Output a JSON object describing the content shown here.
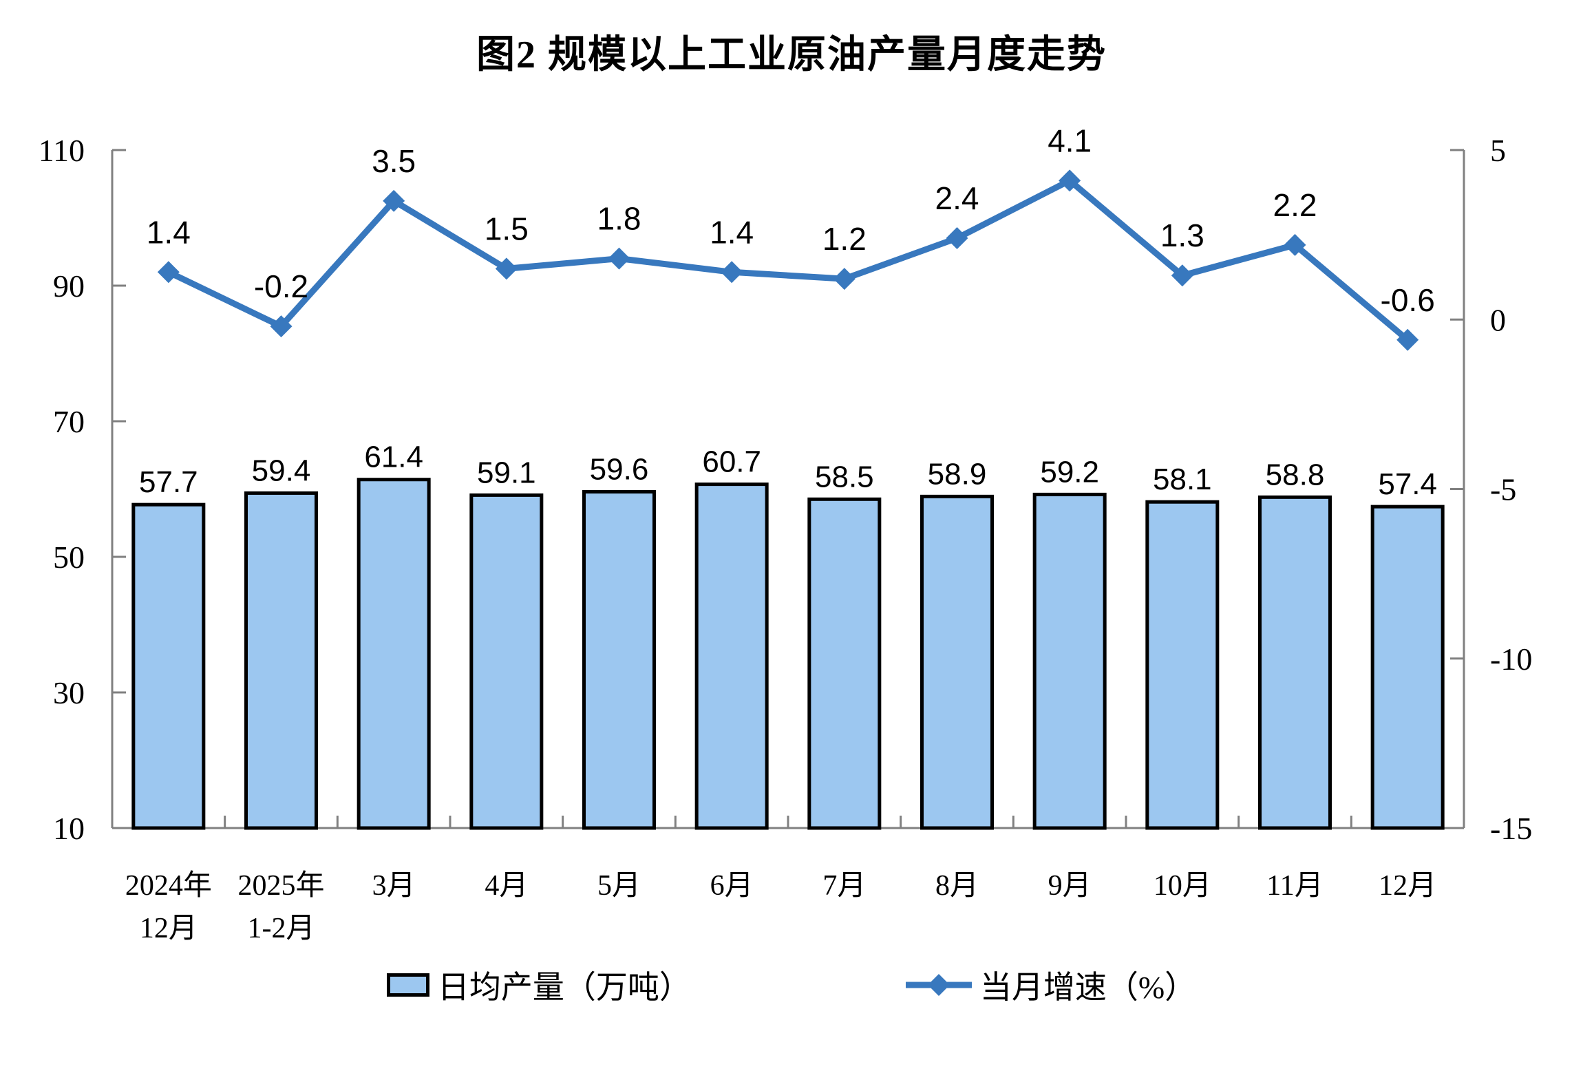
{
  "title": "图2 规模以上工业原油产量月度走势",
  "colors": {
    "bar_fill": "#9CC7F0",
    "bar_border": "#000000",
    "line": "#3878BE",
    "axis": "#808080",
    "text": "#000000"
  },
  "legend": {
    "bar_label": "日均产量（万吨）",
    "line_label": "当月增速（%）"
  },
  "chart_data": {
    "type": "bar+line combo",
    "title": "图2 规模以上工业原油产量月度走势",
    "categories": [
      "2024年12月",
      "2025年1-2月",
      "3月",
      "4月",
      "5月",
      "6月",
      "7月",
      "8月",
      "9月",
      "10月",
      "11月",
      "12月"
    ],
    "category_lines": [
      [
        "2024年",
        "12月"
      ],
      [
        "2025年",
        "1-2月"
      ],
      [
        "3月"
      ],
      [
        "4月"
      ],
      [
        "5月"
      ],
      [
        "6月"
      ],
      [
        "7月"
      ],
      [
        "8月"
      ],
      [
        "9月"
      ],
      [
        "10月"
      ],
      [
        "11月"
      ],
      [
        "12月"
      ]
    ],
    "series": [
      {
        "name": "日均产量（万吨）",
        "type": "bar",
        "axis": "left",
        "values": [
          57.7,
          59.4,
          61.4,
          59.1,
          59.6,
          60.7,
          58.5,
          58.9,
          59.2,
          58.1,
          58.8,
          57.4
        ]
      },
      {
        "name": "当月增速（%）",
        "type": "line",
        "axis": "right",
        "values": [
          1.4,
          -0.2,
          3.5,
          1.5,
          1.8,
          1.4,
          1.2,
          2.4,
          4.1,
          1.3,
          2.2,
          -0.6
        ]
      }
    ],
    "left_axis": {
      "min": 10,
      "max": 110,
      "ticks": [
        110,
        90,
        70,
        50,
        30,
        10
      ]
    },
    "right_axis": {
      "min": -15,
      "max": 5,
      "ticks": [
        5,
        0,
        -5,
        -10,
        -15
      ]
    },
    "grid": "off",
    "legend_position": "bottom"
  }
}
